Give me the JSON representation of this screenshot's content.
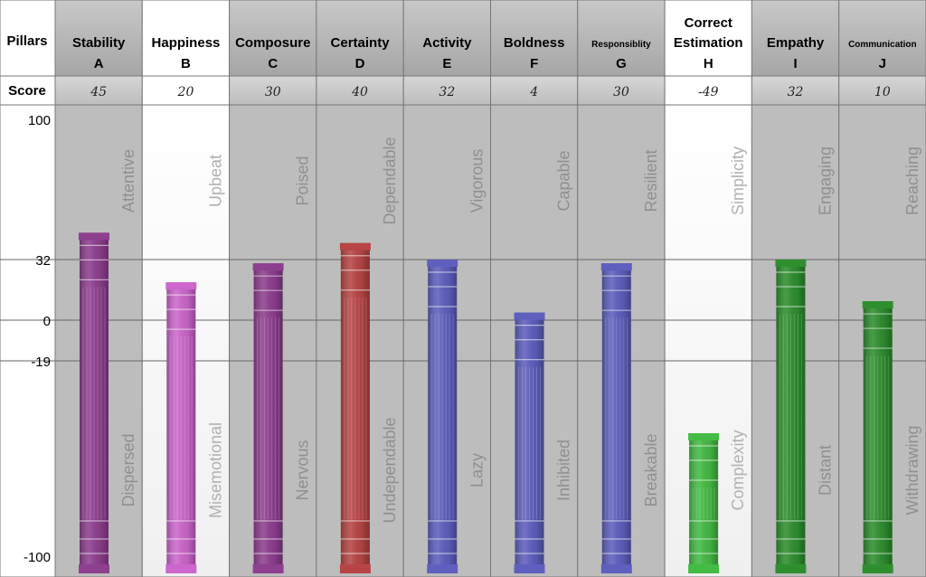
{
  "header": {
    "pillars_label": "Pillars",
    "score_label": "Score"
  },
  "chart_data": {
    "type": "bar",
    "y_ticks": [
      100,
      32,
      0,
      -19,
      -100
    ],
    "ylim": [
      -100,
      100
    ],
    "grid": true,
    "pillars": [
      {
        "name": "Stability",
        "letter": "A",
        "score": 45,
        "top": "Attentive",
        "bottom": "Dispersed",
        "color": "#8e3f8e",
        "highlight": false
      },
      {
        "name": "Happiness",
        "letter": "B",
        "score": 20,
        "top": "Upbeat",
        "bottom": "Misemotional",
        "color": "#cc66cc",
        "highlight": true
      },
      {
        "name": "Composure",
        "letter": "C",
        "score": 30,
        "top": "Poised",
        "bottom": "Nervous",
        "color": "#8e3f8e",
        "highlight": false
      },
      {
        "name": "Certainty",
        "letter": "D",
        "score": 40,
        "top": "Dependable",
        "bottom": "Undependable",
        "color": "#b84545",
        "highlight": false
      },
      {
        "name": "Activity",
        "letter": "E",
        "score": 32,
        "top": "Vigorous",
        "bottom": "Lazy",
        "color": "#5f5fbf",
        "highlight": false
      },
      {
        "name": "Boldness",
        "letter": "F",
        "score": 4,
        "top": "Capable",
        "bottom": "Inhibited",
        "color": "#5f5fbf",
        "highlight": false
      },
      {
        "name": "Responsiblity",
        "letter": "G",
        "score": 30,
        "top": "Resilient",
        "bottom": "Breakable",
        "color": "#5f5fbf",
        "highlight": false
      },
      {
        "name": "Correct Estimation",
        "letter": "H",
        "score": -49,
        "top": "Simplicity",
        "bottom": "Complexity",
        "color": "#44bb44",
        "highlight": true
      },
      {
        "name": "Empathy",
        "letter": "I",
        "score": 32,
        "top": "Engaging",
        "bottom": "Distant",
        "color": "#2f8f2f",
        "highlight": false
      },
      {
        "name": "Communication",
        "letter": "J",
        "score": 10,
        "top": "Reaching",
        "bottom": "Withdrawing",
        "color": "#2f8f2f",
        "highlight": false
      }
    ]
  }
}
